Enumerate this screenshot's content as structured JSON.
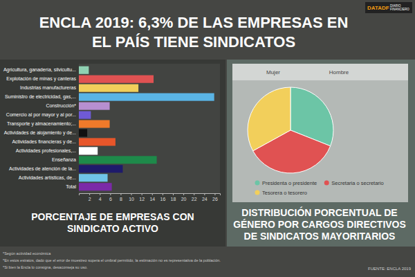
{
  "header": {
    "title": "ENCLA 2019: 6,3% DE LAS EMPRESAS EN EL PAÍS TIENE SINDICATOS",
    "logo": "DATADF",
    "logo_sub": "DIARIO FINANCIERO"
  },
  "chart_data": [
    {
      "type": "bar",
      "orientation": "horizontal",
      "title": "PORCENTAJE DE EMPRESAS CON SINDICATO ACTIVO",
      "categories": [
        "Agricultura, ganadería, silvicultu...",
        "Explotación de minas y canteras",
        "Industrias manufactureras",
        "Suministro de electricidad, gas,...",
        "Construcción*",
        "Comercio al por mayor y al por...",
        "Transporte y almacenamiento;...",
        "Actividades de alojamiento y de...",
        "Actividades financieras y de...",
        "Actividades profesionales,...",
        "Enseñanza",
        "Actividades de atención de la...",
        "Actividades artísticas, de...",
        "Total"
      ],
      "values": [
        1.9,
        14.3,
        11.4,
        25.9,
        5.9,
        2.3,
        5.9,
        1.6,
        7.0,
        3.6,
        14.9,
        8.4,
        5.5,
        6.3
      ],
      "colors": [
        "#8fd1b2",
        "#e05252",
        "#f2cf5b",
        "#5ab4e5",
        "#b78fd0",
        "#6f5ad6",
        "#f07a2a",
        "#111111",
        "#e8562a",
        "#ffffff",
        "#1e8a4a",
        "#1e1a6b",
        "#6fc3e8",
        "#7b2aa8"
      ],
      "xlim": [
        0,
        27
      ],
      "xticks": [
        2,
        4,
        6,
        8,
        10,
        12,
        14,
        16,
        18,
        20,
        22,
        24,
        26
      ],
      "grid": false
    },
    {
      "type": "pie",
      "title": "DISTRIBUCIÓN PORCENTUAL DE GÉNERO POR CARGOS DIRECTIVOS DE SINDICATOS MAYORITARIOS",
      "tabs": [
        "Mujer",
        "Hombre"
      ],
      "categories": [
        "Presidenta o presidente",
        "Secretaria o secretario",
        "Tesorera o tesorero"
      ],
      "values": [
        31,
        36,
        33
      ],
      "colors": [
        "#6cc5a6",
        "#e05252",
        "#f2cf5b"
      ],
      "legend": "bottom"
    }
  ],
  "footnotes": [
    "*Según actividad económica",
    "*En estos estratos, dado que el error de muestreo supera el umbral permitido, la estimación no es representativa de la población.",
    "*Si bien la Encla lo consigna, desaconseja su uso."
  ],
  "source": "FUENTE: ENCLA 2019"
}
